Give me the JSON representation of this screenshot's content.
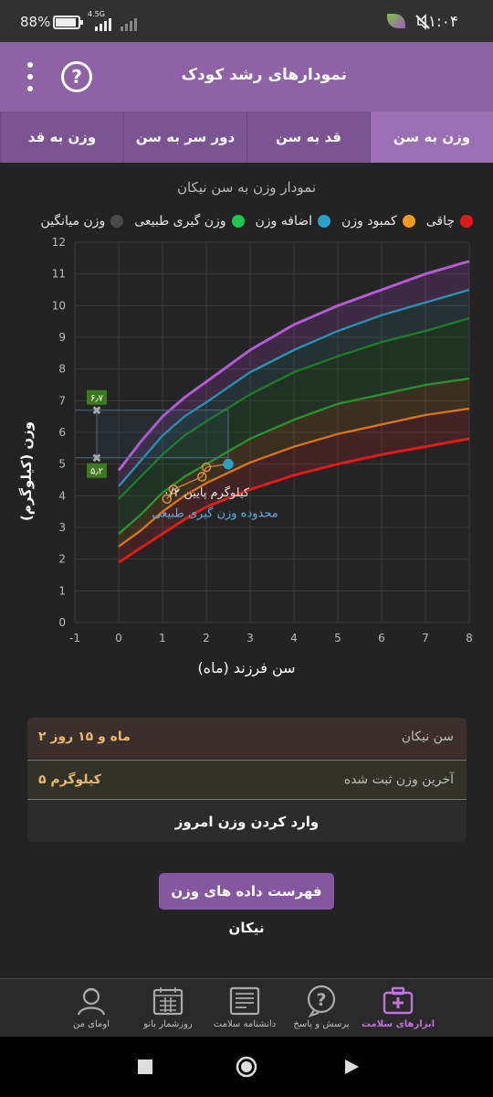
{
  "status_bar": {
    "time": "۱:۰۴",
    "battery": "88%",
    "network": "4.5G"
  },
  "header": {
    "title": "نمودارهای رشد کودک"
  },
  "tabs": [
    {
      "label": "وزن به سن",
      "active": true
    },
    {
      "label": "قد به سن",
      "active": false
    },
    {
      "label": "دور سر به سن",
      "active": false
    },
    {
      "label": "وزن به قد",
      "active": false
    }
  ],
  "chart_title": "نمودار وزن به سن نیکان",
  "legend": [
    {
      "label": "چاقی",
      "color": "#e01a1a"
    },
    {
      "label": "کمبود وزن",
      "color": "#f29a1d"
    },
    {
      "label": "اضافه وزن",
      "color": "#2aa2c8"
    },
    {
      "label": "وزن گیری طبیعی",
      "color": "#19c84e"
    },
    {
      "label": "وزن میانگین",
      "color": "#4a4a4a"
    }
  ],
  "chart_data": {
    "type": "line",
    "xlabel": "سن فرزند (ماه)",
    "ylabel": "وزن (کیلوگرم)",
    "xlim": [
      -1,
      8
    ],
    "ylim": [
      0,
      12
    ],
    "x_ticks": [
      -1,
      0,
      1,
      2,
      3,
      4,
      5,
      6,
      7,
      8
    ],
    "y_ticks": [
      0,
      1,
      2,
      3,
      4,
      5,
      6,
      7,
      8,
      9,
      10,
      11,
      12
    ],
    "grid": true,
    "x": [
      0,
      0.5,
      1,
      1.5,
      2,
      3,
      4,
      5,
      6,
      7,
      8
    ],
    "series": [
      {
        "color": "#b35bd3",
        "values": [
          4.8,
          5.7,
          6.5,
          7.1,
          7.6,
          8.6,
          9.4,
          10.0,
          10.5,
          11.0,
          11.4
        ]
      },
      {
        "color": "#2a8fb3",
        "values": [
          4.3,
          5.1,
          5.9,
          6.5,
          6.95,
          7.9,
          8.6,
          9.2,
          9.7,
          10.1,
          10.5
        ]
      },
      {
        "color": "#1e7a2a",
        "values": [
          3.9,
          4.6,
          5.3,
          5.9,
          6.35,
          7.2,
          7.9,
          8.4,
          8.85,
          9.2,
          9.6
        ]
      },
      {
        "color": "#2a8f2f",
        "values": [
          2.8,
          3.4,
          4.1,
          4.6,
          5.0,
          5.8,
          6.4,
          6.9,
          7.2,
          7.5,
          7.7
        ]
      },
      {
        "color": "#d8731d",
        "values": [
          2.4,
          2.9,
          3.5,
          4.0,
          4.4,
          5.05,
          5.55,
          5.95,
          6.25,
          6.55,
          6.75
        ]
      },
      {
        "color": "#e01a1a",
        "values": [
          1.9,
          2.35,
          2.8,
          3.25,
          3.65,
          4.2,
          4.65,
          5.0,
          5.3,
          5.55,
          5.8
        ]
      }
    ],
    "child_points": [
      {
        "x": 1.1,
        "y": 3.9
      },
      {
        "x": 1.25,
        "y": 4.2
      },
      {
        "x": 1.9,
        "y": 4.6
      },
      {
        "x": 2.0,
        "y": 4.9
      },
      {
        "x": 2.5,
        "y": 5.0
      }
    ],
    "range_markers": [
      {
        "label": "۶٫۷",
        "y": 6.7
      },
      {
        "label": "۵٫۲",
        "y": 5.2
      }
    ],
    "annotations": [
      "۰/۲ کیلوگرم پایین",
      "محدوده وزن گیری طبیعی"
    ]
  },
  "info": {
    "age_label": "سن نیکان",
    "age_value": "۲ ماه و ۱۵ روز",
    "weight_label": "آخرین وزن ثبت شده",
    "weight_value": "۵ کیلوگرم",
    "enter_label": "وارد کردن وزن امروز"
  },
  "data_list_button": "فهرست داده های وزن نیکان",
  "bottom_nav": [
    {
      "label": "ابزارهای سلامت",
      "icon": "first-aid-kit-icon",
      "active": true
    },
    {
      "label": "پرسش و پاسخ",
      "icon": "question-bubble-icon",
      "active": false
    },
    {
      "label": "دانشنامه سلامت",
      "icon": "encyclopedia-icon",
      "active": false
    },
    {
      "label": "روزشمار بانو",
      "icon": "calendar-icon",
      "active": false
    },
    {
      "label": "اومای من",
      "icon": "profile-icon",
      "active": false
    }
  ]
}
